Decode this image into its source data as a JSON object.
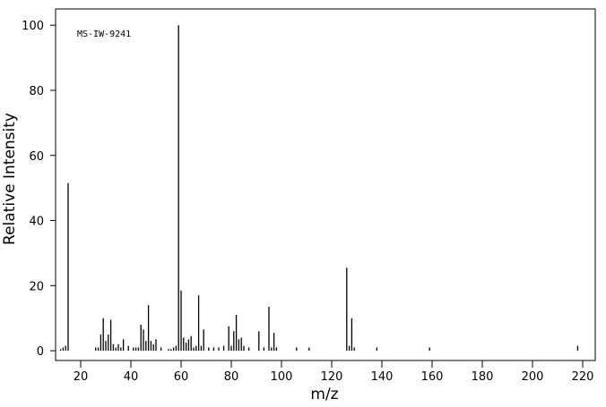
{
  "chart_data": {
    "type": "bar",
    "annotation": "MS-IW-9241",
    "xlabel": "m/z",
    "ylabel": "Relative Intensity",
    "x": [
      12,
      13,
      14,
      15,
      26,
      27,
      28,
      29,
      30,
      31,
      32,
      33,
      34,
      35,
      36,
      37,
      39,
      41,
      42,
      43,
      44,
      45,
      46,
      47,
      48,
      49,
      50,
      52,
      55,
      56,
      57,
      58,
      59,
      60,
      61,
      62,
      63,
      64,
      65,
      66,
      67,
      68,
      69,
      71,
      73,
      75,
      77,
      79,
      80,
      81,
      82,
      83,
      84,
      85,
      87,
      91,
      93,
      95,
      96,
      97,
      98,
      106,
      111,
      126,
      127,
      128,
      129,
      138,
      159,
      218
    ],
    "values": [
      0.5,
      1,
      1.5,
      51.5,
      1,
      1,
      5,
      10,
      3,
      5,
      9.5,
      2,
      1,
      2,
      1,
      3.5,
      1.5,
      1,
      1,
      1,
      8,
      6.5,
      3,
      14,
      3,
      2,
      3.5,
      1,
      0.5,
      0.5,
      1,
      1.5,
      100,
      18.5,
      4,
      2.5,
      3.5,
      4.5,
      1,
      1.5,
      17,
      1.5,
      6.5,
      1,
      1,
      1,
      1.5,
      7.5,
      1.5,
      6,
      11,
      3.5,
      4,
      1.5,
      1,
      6,
      1,
      13.5,
      1,
      5.5,
      1,
      1,
      1,
      25.5,
      1.5,
      10,
      1,
      1,
      1,
      1.5
    ],
    "color": "#000000",
    "xlim": [
      10,
      225
    ],
    "xticks": [
      20,
      40,
      60,
      80,
      100,
      120,
      140,
      160,
      180,
      200,
      220
    ],
    "ylim": [
      -3,
      105
    ],
    "yticks": [
      0,
      20,
      40,
      60,
      80,
      100
    ]
  }
}
